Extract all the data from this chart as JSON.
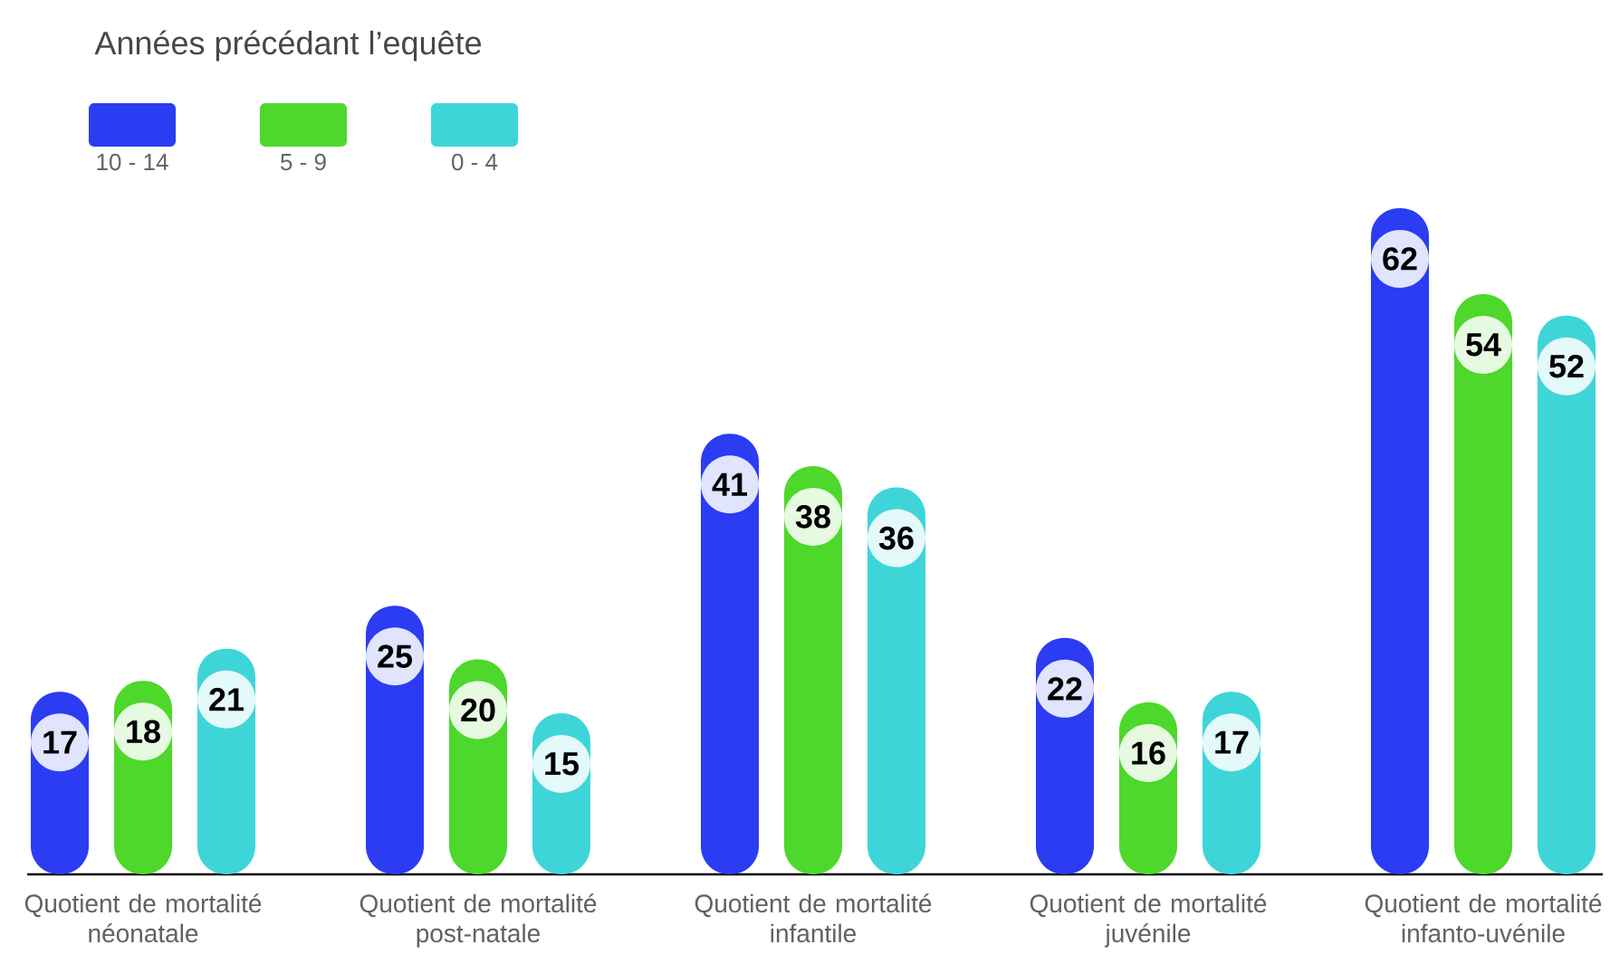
{
  "chart_data": {
    "type": "bar",
    "legend_title": "Années précédant l’equête",
    "categories": [
      "Quotient de mortalité néonatale",
      "Quotient de mortalité post-natale",
      "Quotient de mortalité infantile",
      "Quotient de mortalité juvénile",
      "Quotient de mortalité infanto-uvénile"
    ],
    "series": [
      {
        "name": "10 - 14",
        "color": "#2b3cf2",
        "values": [
          17,
          25,
          41,
          22,
          62
        ]
      },
      {
        "name": "5 - 9",
        "color": "#4dd82b",
        "values": [
          18,
          20,
          38,
          16,
          54
        ]
      },
      {
        "name": "0 - 4",
        "color": "#3ed5d9",
        "values": [
          21,
          15,
          36,
          17,
          52
        ]
      }
    ],
    "data_labels": true,
    "legend": "top left",
    "tick_labels": "x"
  }
}
